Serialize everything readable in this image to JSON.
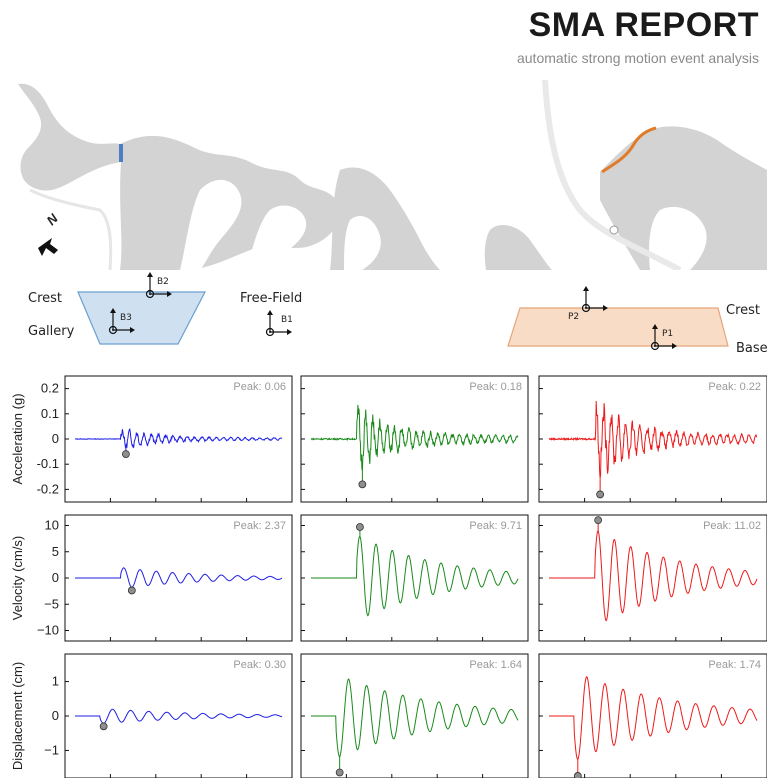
{
  "header": {
    "title": "SMA REPORT",
    "subtitle": "automatic strong motion event analysis"
  },
  "maps": {
    "north_label": "N",
    "left_marker_color": "#4a7fc1",
    "right_marker_color": "#e07b2a"
  },
  "schematic": {
    "left": {
      "crest_label": "Crest",
      "gallery_label": "Gallery",
      "sensor_b2": "B2",
      "sensor_b3": "B3",
      "fill": "#cfe0f1",
      "stroke": "#6a9fd0"
    },
    "middle": {
      "freefield_label": "Free-Field",
      "sensor_b1": "B1"
    },
    "right": {
      "crest_label": "Crest",
      "base_label": "Base",
      "sensor_p2": "P2",
      "sensor_p1": "P1",
      "fill": "#f8dcc6",
      "stroke": "#e6a57a"
    }
  },
  "chart_data": [
    {
      "type": "line",
      "row": "acceleration",
      "ylabel": "Acceleration (g)",
      "ylim": [
        -0.25,
        0.25
      ],
      "yticks": [
        0.2,
        0.1,
        0,
        -0.1,
        -0.2
      ],
      "yticklabels": [
        "0.2",
        "0.1",
        "0",
        "-0.1",
        "-0.2"
      ],
      "peak_label": "Peak: 0.06",
      "peak_value": -0.06,
      "color": "#1f1fe6",
      "shape": "accel",
      "intensity": 0.06
    },
    {
      "type": "line",
      "row": "acceleration",
      "ylabel": "",
      "ylim": [
        -0.25,
        0.25
      ],
      "peak_label": "Peak: 0.18",
      "peak_value": -0.18,
      "color": "#1a8a1a",
      "shape": "accel",
      "intensity": 0.18
    },
    {
      "type": "line",
      "row": "acceleration",
      "ylabel": "",
      "ylim": [
        -0.25,
        0.25
      ],
      "peak_label": "Peak: 0.22",
      "peak_value": -0.22,
      "color": "#ee1a1a",
      "shape": "accel",
      "intensity": 0.22
    },
    {
      "type": "line",
      "row": "velocity",
      "ylabel": "Velocity (cm/s)",
      "ylim": [
        -12,
        12
      ],
      "yticks": [
        10,
        5,
        0,
        -5,
        -10
      ],
      "yticklabels": [
        "10",
        "5",
        "0",
        "−5",
        "−10"
      ],
      "peak_label": "Peak: 2.37",
      "peak_value": -2.37,
      "color": "#1f1fe6",
      "shape": "vel",
      "intensity": 2.37
    },
    {
      "type": "line",
      "row": "velocity",
      "ylabel": "",
      "ylim": [
        -12,
        12
      ],
      "peak_label": "Peak: 9.71",
      "peak_value": 9.71,
      "color": "#1a8a1a",
      "shape": "vel",
      "intensity": 9.71
    },
    {
      "type": "line",
      "row": "velocity",
      "ylabel": "",
      "ylim": [
        -12,
        12
      ],
      "peak_label": "Peak: 11.02",
      "peak_value": 11.02,
      "color": "#ee1a1a",
      "shape": "vel",
      "intensity": 11.02
    },
    {
      "type": "line",
      "row": "displacement",
      "ylabel": "Displacement (cm)",
      "ylim": [
        -1.8,
        1.8
      ],
      "yticks": [
        1,
        0,
        -1
      ],
      "yticklabels": [
        "1",
        "0",
        "−1"
      ],
      "peak_label": "Peak: 0.30",
      "peak_value": -0.3,
      "color": "#1f1fe6",
      "shape": "disp",
      "intensity": 0.3
    },
    {
      "type": "line",
      "row": "displacement",
      "ylabel": "",
      "ylim": [
        -1.8,
        1.8
      ],
      "peak_label": "Peak: 1.64",
      "peak_value": -1.64,
      "color": "#1a8a1a",
      "shape": "disp",
      "intensity": 1.64
    },
    {
      "type": "line",
      "row": "displacement",
      "ylabel": "",
      "ylim": [
        -1.8,
        1.8
      ],
      "peak_label": "Peak: 1.74",
      "peak_value": -1.74,
      "color": "#ee1a1a",
      "shape": "disp",
      "intensity": 1.74
    }
  ]
}
